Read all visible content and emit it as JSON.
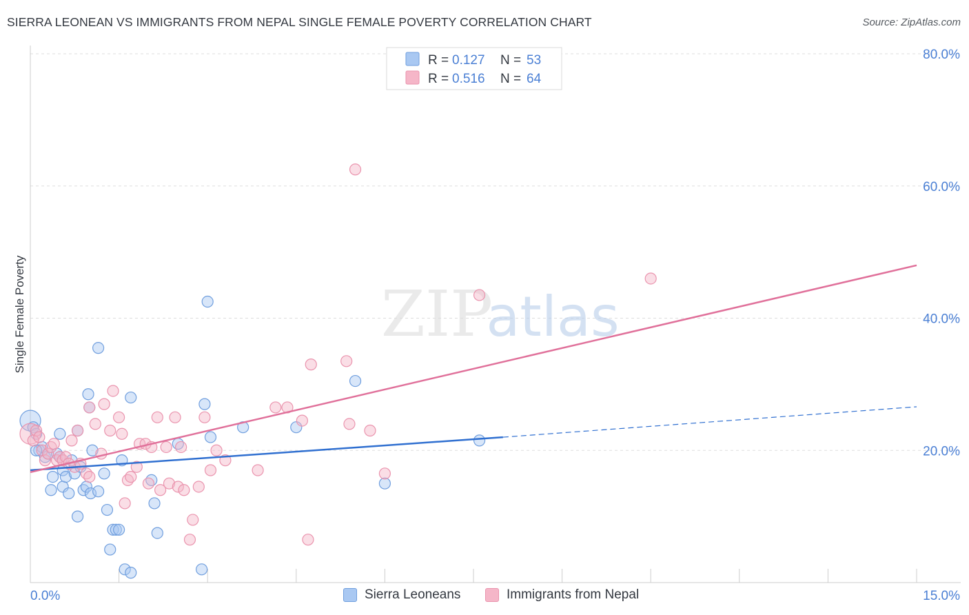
{
  "title": "SIERRA LEONEAN VS IMMIGRANTS FROM NEPAL SINGLE FEMALE POVERTY CORRELATION CHART",
  "source": "Source: ZipAtlas.com",
  "watermark": {
    "zip": "ZIP",
    "atlas": "atlas"
  },
  "colors": {
    "blue_fill": "#a9c8f2",
    "blue_stroke": "#6f9ede",
    "blue_line": "#2f6fd0",
    "pink_fill": "#f5b6c8",
    "pink_stroke": "#ea93ad",
    "pink_line": "#e0709a",
    "axis_text": "#4a7fd4",
    "grid": "#dddddd"
  },
  "chart_data": {
    "type": "scatter",
    "title": "SIERRA LEONEAN VS IMMIGRANTS FROM NEPAL SINGLE FEMALE POVERTY CORRELATION CHART",
    "xlabel": "",
    "ylabel": "Single Female Poverty",
    "xlim": [
      0,
      15
    ],
    "ylim": [
      0,
      80
    ],
    "x_tick_labels": [
      "0.0%",
      "15.0%"
    ],
    "y_ticks": [
      20,
      40,
      60,
      80
    ],
    "y_tick_labels": [
      "20.0%",
      "40.0%",
      "60.0%",
      "80.0%"
    ],
    "grid": true,
    "legend_position": "top-center",
    "legend": [
      {
        "r_label": "R =",
        "r_value": "0.127",
        "n_label": "N =",
        "n_value": "53"
      },
      {
        "r_label": "R =",
        "r_value": "0.516",
        "n_label": "N =",
        "n_value": "64"
      }
    ],
    "series": [
      {
        "name": "Sierra Leoneans",
        "color": "#a9c8f2",
        "trend": {
          "x0": 0,
          "y0": 17.0,
          "x1": 8.0,
          "y1": 22.0,
          "dash_to_x": 15.0,
          "dash_to_y": 26.6
        },
        "points": [
          [
            0.0,
            24.5
          ],
          [
            0.05,
            23.5
          ],
          [
            0.1,
            22.5
          ],
          [
            0.15,
            20.0
          ],
          [
            0.2,
            20.5
          ],
          [
            0.25,
            19.0
          ],
          [
            0.3,
            19.5
          ],
          [
            0.35,
            14.0
          ],
          [
            0.38,
            16.0
          ],
          [
            0.45,
            19.5
          ],
          [
            0.5,
            19.0
          ],
          [
            0.5,
            22.5
          ],
          [
            0.55,
            17.0
          ],
          [
            0.55,
            14.5
          ],
          [
            0.6,
            16.0
          ],
          [
            0.65,
            13.5
          ],
          [
            0.7,
            18.5
          ],
          [
            0.75,
            16.5
          ],
          [
            0.8,
            10.0
          ],
          [
            0.8,
            23.0
          ],
          [
            0.85,
            17.5
          ],
          [
            0.9,
            14.0
          ],
          [
            0.95,
            14.5
          ],
          [
            0.98,
            28.5
          ],
          [
            1.0,
            26.5
          ],
          [
            1.02,
            13.5
          ],
          [
            1.05,
            20.0
          ],
          [
            1.15,
            35.5
          ],
          [
            1.15,
            13.8
          ],
          [
            1.25,
            16.5
          ],
          [
            1.3,
            11.0
          ],
          [
            1.35,
            5.0
          ],
          [
            1.4,
            8.0
          ],
          [
            1.45,
            8.0
          ],
          [
            1.5,
            8.0
          ],
          [
            1.55,
            18.5
          ],
          [
            1.6,
            2.0
          ],
          [
            1.7,
            1.5
          ],
          [
            1.7,
            28.0
          ],
          [
            2.05,
            15.5
          ],
          [
            2.1,
            12.0
          ],
          [
            2.15,
            7.5
          ],
          [
            2.5,
            21.0
          ],
          [
            2.9,
            2.0
          ],
          [
            2.95,
            27.0
          ],
          [
            3.0,
            42.5
          ],
          [
            3.05,
            22.0
          ],
          [
            3.6,
            23.5
          ],
          [
            4.5,
            23.5
          ],
          [
            5.5,
            30.5
          ],
          [
            6.0,
            15.0
          ],
          [
            7.6,
            21.5
          ],
          [
            0.1,
            20.0
          ]
        ]
      },
      {
        "name": "Immigrants from Nepal",
        "color": "#f5b6c8",
        "trend": {
          "x0": 0,
          "y0": 16.7,
          "x1": 15.0,
          "y1": 48.0
        },
        "points": [
          [
            0.0,
            22.5
          ],
          [
            0.05,
            21.5
          ],
          [
            0.1,
            23.0
          ],
          [
            0.15,
            22.0
          ],
          [
            0.2,
            20.0
          ],
          [
            0.25,
            18.5
          ],
          [
            0.3,
            19.5
          ],
          [
            0.35,
            20.5
          ],
          [
            0.4,
            21.0
          ],
          [
            0.45,
            18.5
          ],
          [
            0.5,
            19.0
          ],
          [
            0.55,
            18.5
          ],
          [
            0.6,
            19.0
          ],
          [
            0.65,
            18.0
          ],
          [
            0.7,
            21.5
          ],
          [
            0.75,
            17.5
          ],
          [
            0.8,
            23.0
          ],
          [
            0.85,
            18.0
          ],
          [
            0.95,
            16.5
          ],
          [
            1.0,
            16.0
          ],
          [
            1.0,
            26.5
          ],
          [
            1.1,
            24.0
          ],
          [
            1.2,
            19.5
          ],
          [
            1.25,
            27.0
          ],
          [
            1.35,
            23.0
          ],
          [
            1.4,
            29.0
          ],
          [
            1.5,
            25.0
          ],
          [
            1.55,
            22.5
          ],
          [
            1.6,
            12.0
          ],
          [
            1.65,
            15.5
          ],
          [
            1.7,
            16.0
          ],
          [
            1.8,
            17.5
          ],
          [
            1.85,
            21.0
          ],
          [
            1.95,
            21.0
          ],
          [
            2.0,
            15.0
          ],
          [
            2.05,
            20.5
          ],
          [
            2.15,
            25.0
          ],
          [
            2.2,
            14.0
          ],
          [
            2.3,
            20.5
          ],
          [
            2.35,
            15.0
          ],
          [
            2.45,
            25.0
          ],
          [
            2.5,
            14.5
          ],
          [
            2.55,
            20.5
          ],
          [
            2.6,
            14.0
          ],
          [
            2.7,
            6.5
          ],
          [
            2.75,
            9.5
          ],
          [
            2.85,
            14.5
          ],
          [
            2.95,
            25.0
          ],
          [
            3.05,
            17.0
          ],
          [
            3.15,
            20.0
          ],
          [
            3.3,
            18.5
          ],
          [
            3.85,
            17.0
          ],
          [
            4.15,
            26.5
          ],
          [
            4.35,
            26.5
          ],
          [
            4.6,
            24.5
          ],
          [
            4.7,
            6.5
          ],
          [
            4.75,
            33.0
          ],
          [
            5.35,
            33.5
          ],
          [
            5.4,
            24.0
          ],
          [
            5.5,
            62.5
          ],
          [
            5.75,
            23.0
          ],
          [
            6.0,
            16.5
          ],
          [
            7.6,
            43.5
          ],
          [
            10.5,
            46.0
          ]
        ]
      }
    ]
  }
}
